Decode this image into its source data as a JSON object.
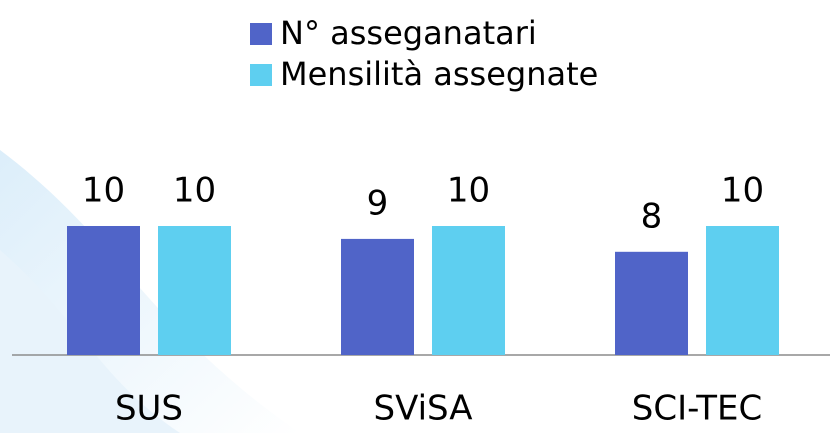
{
  "chart_data": {
    "type": "bar",
    "categories": [
      "SUS",
      "SViSA",
      "SCI-TEC"
    ],
    "series": [
      {
        "name": "N° asseganatari",
        "color": "#5064c8",
        "values": [
          10,
          9,
          8
        ]
      },
      {
        "name": "Mensilità assegnate",
        "color": "#5ecff0",
        "values": [
          10,
          10,
          10
        ]
      }
    ],
    "ylim": [
      0,
      10
    ],
    "legend": "top"
  }
}
